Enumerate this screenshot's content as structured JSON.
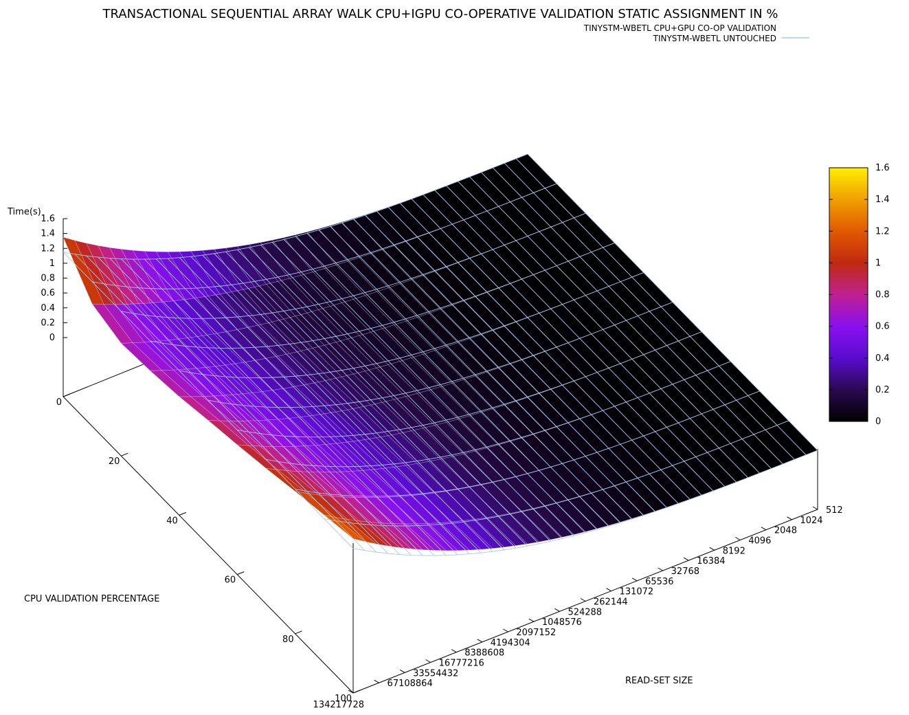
{
  "chart_data": {
    "type": "surface3d",
    "title": "TRANSACTIONAL SEQUENTIAL ARRAY WALK CPU+IGPU CO-OPERATIVE VALIDATION STATIC ASSIGNMENT IN %",
    "zlabel": "Time(s)",
    "xlabel": "CPU VALIDATION PERCENTAGE",
    "ylabel": "READ-SET SIZE",
    "zlim": [
      0,
      1.6
    ],
    "z_ticks": [
      "1.6",
      "1.4",
      "1.2",
      "1",
      "0.8",
      "0.6",
      "0.4",
      "0.2",
      "0"
    ],
    "x_ticks": [
      "0",
      "20",
      "40",
      "60",
      "80",
      "100"
    ],
    "y_ticks": [
      "512",
      "1024",
      "2048",
      "4096",
      "8192",
      "16384",
      "32768",
      "65536",
      "131072",
      "262144",
      "524288",
      "1048576",
      "2097152",
      "4194304",
      "8388608",
      "16777216",
      "33554432",
      "67108864",
      "134217728"
    ],
    "colorbar": {
      "range": [
        0,
        1.6
      ],
      "ticks": [
        "1.6",
        "1.4",
        "1.2",
        "1",
        "0.8",
        "0.6",
        "0.4",
        "0.2",
        "0"
      ],
      "palette": [
        "#000000",
        "#2a0a50",
        "#5a0ccf",
        "#8a10ef",
        "#c02090",
        "#c02a10",
        "#e05a00",
        "#f0a000",
        "#ffef00"
      ]
    },
    "series": [
      {
        "name": "TINYSTM-WBETL CPU+GPU CO-OP VALIDATION",
        "type": "surface",
        "color": "palette",
        "time_at_largest_read_set": [
          1.35,
          0.85,
          0.72,
          0.75,
          0.8,
          0.88,
          0.95,
          1.03,
          1.12,
          1.2,
          1.28
        ],
        "time_at_small_read_sets": 0.0
      },
      {
        "name": "TINYSTM-WBETL UNTOUCHED",
        "type": "line",
        "color": "#a7c7f0",
        "time_at_largest_read_set": [
          1.15,
          1.15,
          1.15,
          1.15,
          1.15,
          1.15,
          1.15,
          1.15,
          1.15,
          1.15,
          1.15
        ],
        "time_at_small_read_sets": 0.0
      }
    ]
  }
}
